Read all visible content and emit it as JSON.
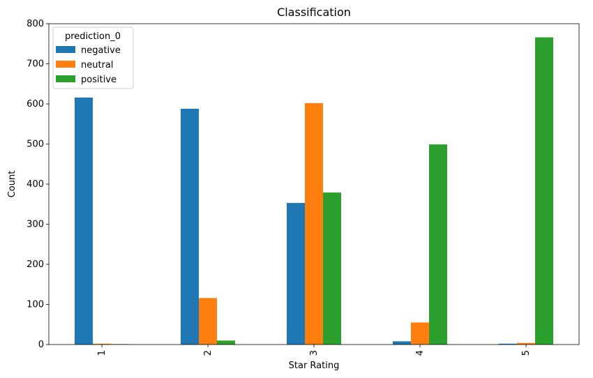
{
  "chart_data": {
    "type": "bar",
    "title": "Classification",
    "xlabel": "Star Rating",
    "ylabel": "Count",
    "categories": [
      "1",
      "2",
      "3",
      "4",
      "5"
    ],
    "series": [
      {
        "name": "negative",
        "color": "#1f77b4",
        "values": [
          616,
          588,
          353,
          8,
          2
        ]
      },
      {
        "name": "neutral",
        "color": "#ff7f0e",
        "values": [
          2,
          116,
          602,
          55,
          4
        ]
      },
      {
        "name": "positive",
        "color": "#2ca02c",
        "values": [
          1,
          10,
          379,
          499,
          766
        ]
      }
    ],
    "ylim": [
      0,
      800
    ],
    "yticks": [
      0,
      100,
      200,
      300,
      400,
      500,
      600,
      700,
      800
    ],
    "legend": {
      "title": "prediction_0",
      "placement": "top-left"
    },
    "grid": false
  }
}
